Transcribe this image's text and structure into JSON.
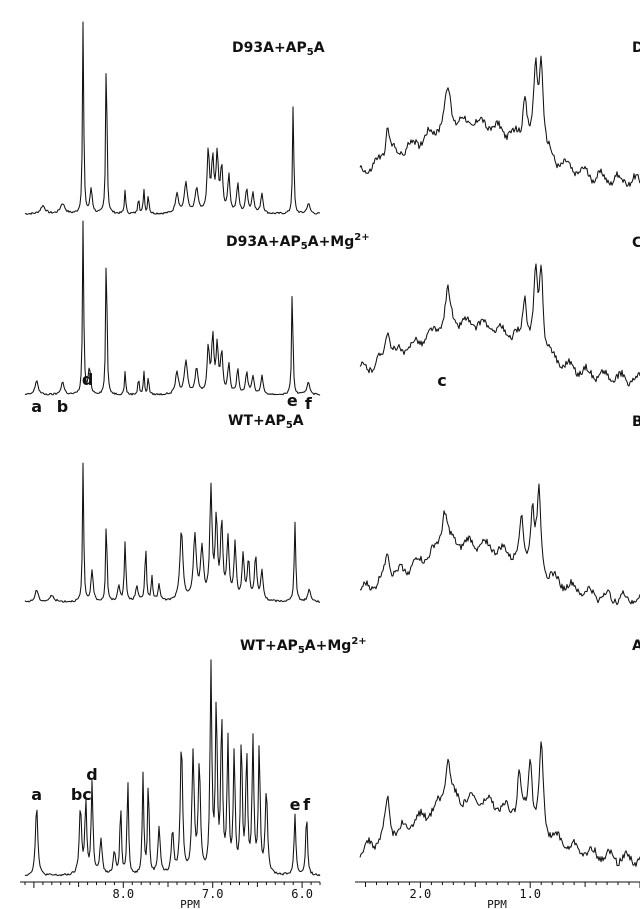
{
  "chart_data": [
    {
      "type": "line",
      "panel": "aromatic",
      "xlabel": "PPM",
      "x_reversed": true,
      "xlim": [
        9.1,
        5.8
      ],
      "xticks": [
        "8.0",
        "7.0",
        "6.0"
      ],
      "spectra": [
        {
          "label": "D93A+AP",
          "sub": "5",
          "tail": "A",
          "sup": "",
          "peak_labels": []
        },
        {
          "label": "D93A+AP",
          "sub": "5",
          "tail": "A+Mg",
          "sup": "2+",
          "peak_labels": [
            {
              "text": "a",
              "ppm": 8.97
            },
            {
              "text": "b",
              "ppm": 8.68
            },
            {
              "text": "c",
              "ppm": 8.48
            },
            {
              "text": "d",
              "ppm": 8.4
            },
            {
              "text": "e",
              "ppm": 6.11
            },
            {
              "text": "f",
              "ppm": 5.93
            }
          ]
        },
        {
          "label": "WT+AP",
          "sub": "5",
          "tail": "A",
          "sup": "",
          "peak_labels": []
        },
        {
          "label": "WT+AP",
          "sub": "5",
          "tail": "A+Mg",
          "sup": "2+",
          "peak_labels": [
            {
              "text": "a",
              "ppm": 8.97
            },
            {
              "text": "bc",
              "ppm": 8.47
            },
            {
              "text": "d",
              "ppm": 8.35
            },
            {
              "text": "e",
              "ppm": 6.08
            },
            {
              "text": "f",
              "ppm": 5.95
            }
          ]
        }
      ],
      "peaks": [
        [
          {
            "ppm": 8.45,
            "h": 0.95,
            "w": 0.008
          },
          {
            "ppm": 8.19,
            "h": 0.85,
            "w": 0.008
          },
          {
            "ppm": 6.1,
            "h": 0.55,
            "w": 0.008
          },
          {
            "ppm": 8.36,
            "h": 0.12,
            "w": 0.015
          },
          {
            "ppm": 7.98,
            "h": 0.12,
            "w": 0.008
          },
          {
            "ppm": 7.83,
            "h": 0.09,
            "w": 0.008
          },
          {
            "ppm": 7.77,
            "h": 0.12,
            "w": 0.008
          },
          {
            "ppm": 7.72,
            "h": 0.1,
            "w": 0.008
          },
          {
            "ppm": 7.4,
            "h": 0.1,
            "w": 0.02
          },
          {
            "ppm": 7.3,
            "h": 0.15,
            "w": 0.02
          },
          {
            "ppm": 7.18,
            "h": 0.12,
            "w": 0.02
          },
          {
            "ppm": 7.05,
            "h": 0.3,
            "w": 0.015
          },
          {
            "ppm": 7.0,
            "h": 0.25,
            "w": 0.015
          },
          {
            "ppm": 6.95,
            "h": 0.28,
            "w": 0.015
          },
          {
            "ppm": 6.9,
            "h": 0.22,
            "w": 0.015
          },
          {
            "ppm": 6.82,
            "h": 0.18,
            "w": 0.015
          },
          {
            "ppm": 6.72,
            "h": 0.14,
            "w": 0.015
          },
          {
            "ppm": 6.62,
            "h": 0.12,
            "w": 0.015
          },
          {
            "ppm": 6.55,
            "h": 0.1,
            "w": 0.015
          },
          {
            "ppm": 6.45,
            "h": 0.1,
            "w": 0.015
          },
          {
            "ppm": 8.9,
            "h": 0.04,
            "w": 0.03
          },
          {
            "ppm": 8.68,
            "h": 0.05,
            "w": 0.03
          },
          {
            "ppm": 5.93,
            "h": 0.05,
            "w": 0.02
          }
        ],
        [
          {
            "ppm": 8.45,
            "h": 0.95,
            "w": 0.008
          },
          {
            "ppm": 8.19,
            "h": 0.85,
            "w": 0.008
          },
          {
            "ppm": 6.11,
            "h": 0.62,
            "w": 0.008
          },
          {
            "ppm": 8.38,
            "h": 0.14,
            "w": 0.015
          },
          {
            "ppm": 7.98,
            "h": 0.13,
            "w": 0.008
          },
          {
            "ppm": 7.83,
            "h": 0.1,
            "w": 0.008
          },
          {
            "ppm": 7.77,
            "h": 0.12,
            "w": 0.008
          },
          {
            "ppm": 7.72,
            "h": 0.1,
            "w": 0.008
          },
          {
            "ppm": 7.4,
            "h": 0.12,
            "w": 0.02
          },
          {
            "ppm": 7.3,
            "h": 0.18,
            "w": 0.02
          },
          {
            "ppm": 7.18,
            "h": 0.14,
            "w": 0.02
          },
          {
            "ppm": 7.05,
            "h": 0.25,
            "w": 0.015
          },
          {
            "ppm": 7.0,
            "h": 0.3,
            "w": 0.015
          },
          {
            "ppm": 6.95,
            "h": 0.25,
            "w": 0.015
          },
          {
            "ppm": 6.9,
            "h": 0.22,
            "w": 0.015
          },
          {
            "ppm": 6.82,
            "h": 0.16,
            "w": 0.015
          },
          {
            "ppm": 6.72,
            "h": 0.13,
            "w": 0.015
          },
          {
            "ppm": 6.62,
            "h": 0.12,
            "w": 0.015
          },
          {
            "ppm": 6.55,
            "h": 0.1,
            "w": 0.015
          },
          {
            "ppm": 6.45,
            "h": 0.1,
            "w": 0.015
          },
          {
            "ppm": 8.97,
            "h": 0.08,
            "w": 0.02
          },
          {
            "ppm": 8.68,
            "h": 0.07,
            "w": 0.02
          },
          {
            "ppm": 5.93,
            "h": 0.07,
            "w": 0.02
          }
        ],
        [
          {
            "ppm": 8.45,
            "h": 0.7,
            "w": 0.008
          },
          {
            "ppm": 8.19,
            "h": 0.45,
            "w": 0.008
          },
          {
            "ppm": 6.08,
            "h": 0.4,
            "w": 0.01
          },
          {
            "ppm": 7.98,
            "h": 0.3,
            "w": 0.01
          },
          {
            "ppm": 7.75,
            "h": 0.28,
            "w": 0.01
          },
          {
            "ppm": 7.68,
            "h": 0.12,
            "w": 0.01
          },
          {
            "ppm": 8.35,
            "h": 0.15,
            "w": 0.015
          },
          {
            "ppm": 8.05,
            "h": 0.08,
            "w": 0.015
          },
          {
            "ppm": 7.85,
            "h": 0.08,
            "w": 0.015
          },
          {
            "ppm": 7.6,
            "h": 0.08,
            "w": 0.015
          },
          {
            "ppm": 7.35,
            "h": 0.35,
            "w": 0.02
          },
          {
            "ppm": 7.2,
            "h": 0.32,
            "w": 0.02
          },
          {
            "ppm": 7.12,
            "h": 0.25,
            "w": 0.02
          },
          {
            "ppm": 7.02,
            "h": 0.55,
            "w": 0.015
          },
          {
            "ppm": 6.96,
            "h": 0.4,
            "w": 0.015
          },
          {
            "ppm": 6.9,
            "h": 0.38,
            "w": 0.015
          },
          {
            "ppm": 6.83,
            "h": 0.3,
            "w": 0.015
          },
          {
            "ppm": 6.75,
            "h": 0.28,
            "w": 0.015
          },
          {
            "ppm": 6.66,
            "h": 0.22,
            "w": 0.015
          },
          {
            "ppm": 6.6,
            "h": 0.2,
            "w": 0.015
          },
          {
            "ppm": 6.52,
            "h": 0.22,
            "w": 0.015
          },
          {
            "ppm": 6.45,
            "h": 0.15,
            "w": 0.015
          },
          {
            "ppm": 8.97,
            "h": 0.06,
            "w": 0.02
          },
          {
            "ppm": 8.8,
            "h": 0.03,
            "w": 0.03
          },
          {
            "ppm": 5.92,
            "h": 0.06,
            "w": 0.02
          }
        ],
        [
          {
            "ppm": 8.97,
            "h": 0.3,
            "w": 0.015
          },
          {
            "ppm": 8.48,
            "h": 0.28,
            "w": 0.015
          },
          {
            "ppm": 8.42,
            "h": 0.3,
            "w": 0.012
          },
          {
            "ppm": 8.35,
            "h": 0.38,
            "w": 0.012
          },
          {
            "ppm": 8.25,
            "h": 0.15,
            "w": 0.015
          },
          {
            "ppm": 8.1,
            "h": 0.1,
            "w": 0.015
          },
          {
            "ppm": 8.03,
            "h": 0.3,
            "w": 0.01
          },
          {
            "ppm": 7.95,
            "h": 0.4,
            "w": 0.01
          },
          {
            "ppm": 7.78,
            "h": 0.42,
            "w": 0.01
          },
          {
            "ppm": 7.72,
            "h": 0.4,
            "w": 0.01
          },
          {
            "ppm": 7.6,
            "h": 0.2,
            "w": 0.015
          },
          {
            "ppm": 7.45,
            "h": 0.18,
            "w": 0.015
          },
          {
            "ppm": 7.35,
            "h": 0.55,
            "w": 0.015
          },
          {
            "ppm": 7.22,
            "h": 0.5,
            "w": 0.015
          },
          {
            "ppm": 7.15,
            "h": 0.45,
            "w": 0.015
          },
          {
            "ppm": 7.02,
            "h": 0.85,
            "w": 0.012
          },
          {
            "ppm": 6.96,
            "h": 0.7,
            "w": 0.012
          },
          {
            "ppm": 6.9,
            "h": 0.65,
            "w": 0.012
          },
          {
            "ppm": 6.83,
            "h": 0.55,
            "w": 0.012
          },
          {
            "ppm": 6.76,
            "h": 0.5,
            "w": 0.012
          },
          {
            "ppm": 6.68,
            "h": 0.55,
            "w": 0.012
          },
          {
            "ppm": 6.62,
            "h": 0.5,
            "w": 0.012
          },
          {
            "ppm": 6.55,
            "h": 0.55,
            "w": 0.012
          },
          {
            "ppm": 6.48,
            "h": 0.52,
            "w": 0.012
          },
          {
            "ppm": 6.4,
            "h": 0.35,
            "w": 0.015
          },
          {
            "ppm": 6.08,
            "h": 0.25,
            "w": 0.012
          },
          {
            "ppm": 5.95,
            "h": 0.25,
            "w": 0.012
          }
        ]
      ]
    },
    {
      "type": "line",
      "panel": "aliphatic",
      "xlabel": "PPM",
      "x_reversed": true,
      "xlim": [
        2.55,
        0.0
      ],
      "xticks": [
        "2.0",
        "1.0"
      ],
      "spectra": [
        {
          "label": "D"
        },
        {
          "label": "C"
        },
        {
          "label": "B"
        },
        {
          "label": "A"
        }
      ],
      "peaks": [
        [
          {
            "ppm": 0.9,
            "h": 0.55,
            "w": 0.02
          },
          {
            "ppm": 0.95,
            "h": 0.45,
            "w": 0.02
          },
          {
            "ppm": 1.05,
            "h": 0.3,
            "w": 0.02
          },
          {
            "ppm": 1.75,
            "h": 0.22,
            "w": 0.03
          },
          {
            "ppm": 2.3,
            "h": 0.2,
            "w": 0.025
          }
        ],
        [
          {
            "ppm": 0.9,
            "h": 0.52,
            "w": 0.02
          },
          {
            "ppm": 0.95,
            "h": 0.42,
            "w": 0.02
          },
          {
            "ppm": 1.05,
            "h": 0.3,
            "w": 0.02
          },
          {
            "ppm": 1.75,
            "h": 0.22,
            "w": 0.03
          },
          {
            "ppm": 2.3,
            "h": 0.2,
            "w": 0.025
          }
        ],
        [
          {
            "ppm": 0.92,
            "h": 0.48,
            "w": 0.02
          },
          {
            "ppm": 0.98,
            "h": 0.36,
            "w": 0.02
          },
          {
            "ppm": 1.08,
            "h": 0.26,
            "w": 0.02
          },
          {
            "ppm": 1.78,
            "h": 0.26,
            "w": 0.03
          },
          {
            "ppm": 2.3,
            "h": 0.18,
            "w": 0.025
          }
        ],
        [
          {
            "ppm": 0.9,
            "h": 0.5,
            "w": 0.02
          },
          {
            "ppm": 1.0,
            "h": 0.4,
            "w": 0.02
          },
          {
            "ppm": 1.1,
            "h": 0.28,
            "w": 0.02
          },
          {
            "ppm": 1.75,
            "h": 0.28,
            "w": 0.03
          },
          {
            "ppm": 2.3,
            "h": 0.22,
            "w": 0.025
          }
        ]
      ]
    }
  ]
}
